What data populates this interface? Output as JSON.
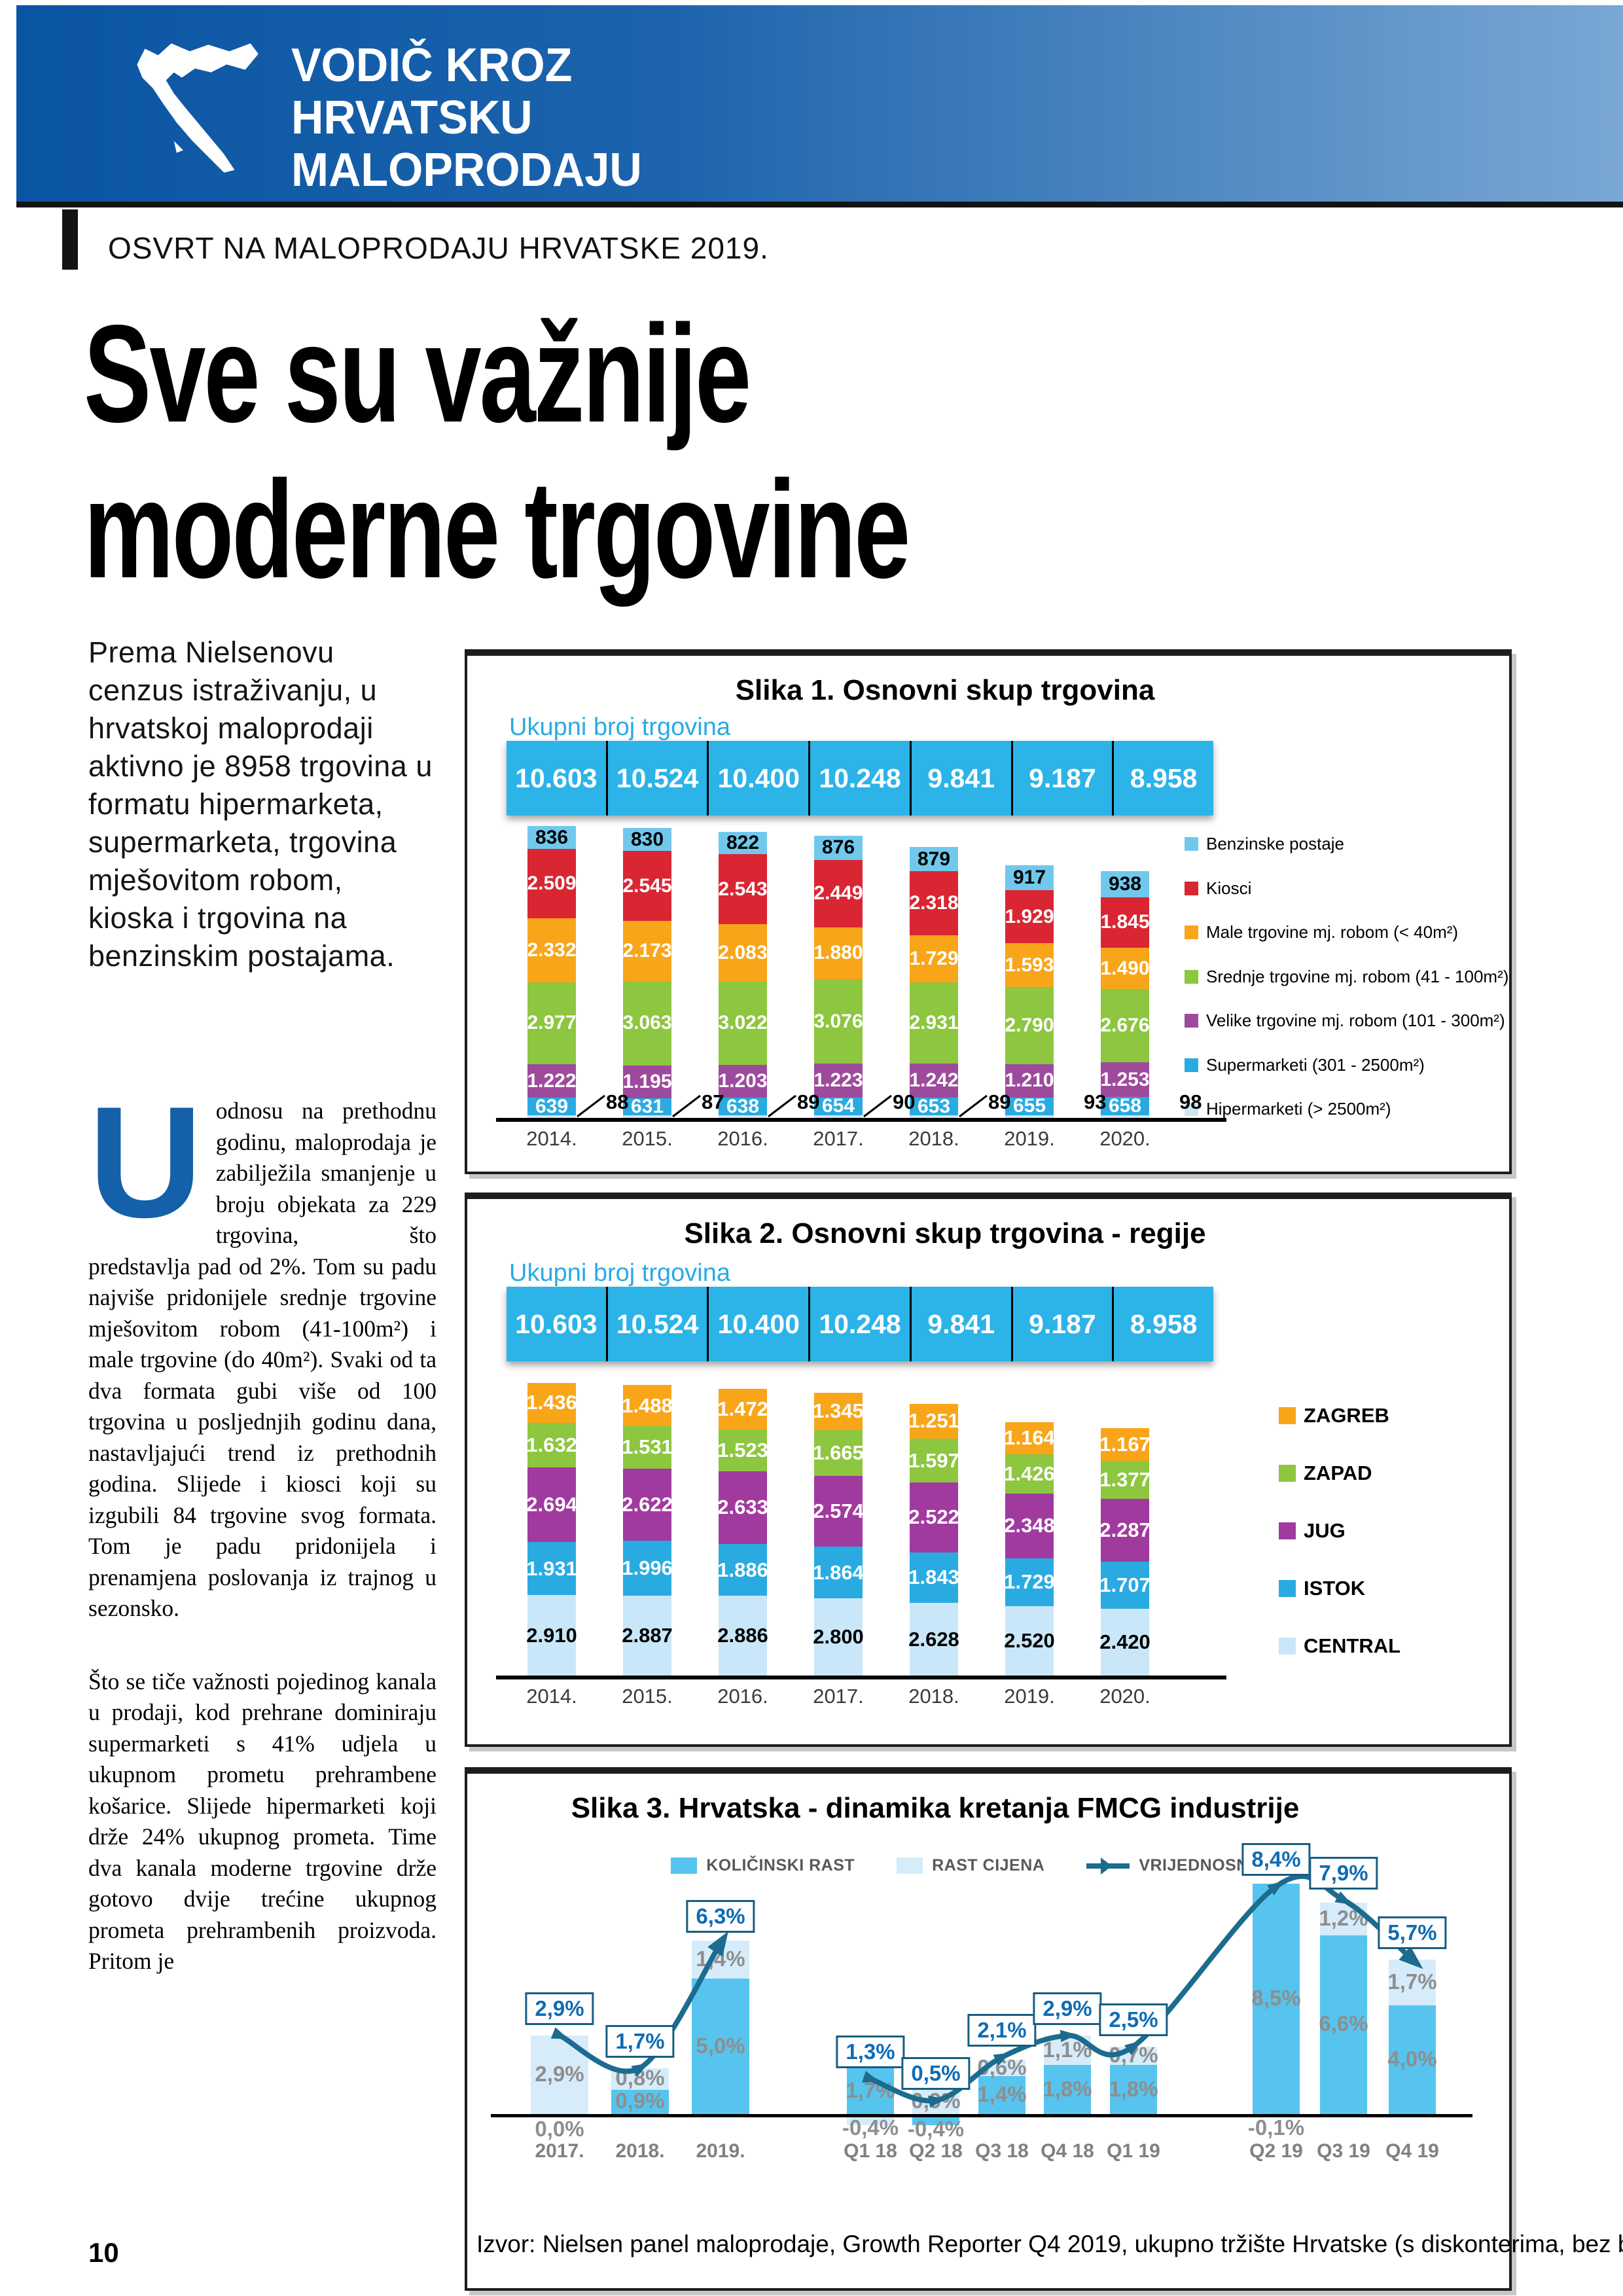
{
  "header": {
    "logo_lines": [
      "VODIČ KROZ",
      "HRVATSKU",
      "MALOPRODAJU"
    ],
    "kicker": "OSVRT NA MALOPRODAJU HRVATSKE 2019."
  },
  "headline": "Sve su važnije\nmoderne trgovine",
  "paragraphs": {
    "intro": "Prema Nielsenovu cenzus istraživanju, u hrvatskoj maloprodaji aktivno je 8958 trgovina u formatu hipermarketa, supermarketa, trgovina mješovitom robom, kioska i trgovina na benzinskim postajama.",
    "dropcap": "U",
    "body1": "odnosu na prethodnu godinu, maloprodaja je zabilježila smanjenje u broju objekata za 229 trgovina, što predstavlja pad od 2%. Tom su padu najviše pridonijele srednje trgovine mješovitom robom (41-100m²) i male trgovine (do 40m²). Svaki od ta dva formata gubi više od 100 trgovina u posljednjih godinu dana, nastavljajući trend iz prethodnih godina. Slijede i kiosci koji su izgubili 84 trgovine svog formata. Tom je padu pridonijela i prenamjena poslovanja iz trajnog u sezonsko.",
    "body2": "Što se tiče važnosti pojedinog kanala u prodaji, kod prehrane dominiraju supermarketi s 41% udjela u ukupnom prometu prehrambene košarice. Slijede hipermarketi koji drže 24% ukupnog prometa. Time dva kanala moderne trgovine drže gotovo dvije trećine ukupnog prometa prehrambenih proizvoda. Pritom je"
  },
  "page_number": "10",
  "chart_data": [
    {
      "type": "bar",
      "stacked": true,
      "title": "Slika 1. Osnovni skup trgovina",
      "subtitle": "Ukupni broj trgovina",
      "totals": [
        "10.603",
        "10.524",
        "10.400",
        "10.248",
        "9.841",
        "9.187",
        "8.958"
      ],
      "categories": [
        "2014.",
        "2015.",
        "2016.",
        "2017.",
        "2018.",
        "2019.",
        "2020."
      ],
      "ymax_total": 10603,
      "series": [
        {
          "name": "Hipermarketi (> 2500m²)",
          "color": "#cfe6f3",
          "callout": true,
          "values": [
            88,
            87,
            89,
            90,
            89,
            93,
            98
          ],
          "labels": [
            "88",
            "87",
            "89",
            "90",
            "89",
            "93",
            "98"
          ]
        },
        {
          "name": "Supermarketi (301 - 2500m²)",
          "color": "#29abe2",
          "label_color": "#ffffff",
          "values": [
            639,
            631,
            638,
            654,
            653,
            655,
            658
          ],
          "labels": [
            "639",
            "631",
            "638",
            "654",
            "653",
            "655",
            "658"
          ]
        },
        {
          "name": "Velike trgovine mj. robom (101 - 300m²)",
          "color": "#9d4a9c",
          "label_color": "#ffffff",
          "values": [
            1222,
            1195,
            1203,
            1223,
            1242,
            1210,
            1253
          ],
          "labels": [
            "1.222",
            "1.195",
            "1.203",
            "1.223",
            "1.242",
            "1.210",
            "1.253"
          ]
        },
        {
          "name": "Srednje trgovine mj. robom (41 - 100m²)",
          "color": "#8dc63f",
          "label_color": "#ffffff",
          "values": [
            2977,
            3063,
            3022,
            3076,
            2931,
            2790,
            2676
          ],
          "labels": [
            "2.977",
            "3.063",
            "3.022",
            "3.076",
            "2.931",
            "2.790",
            "2.676"
          ]
        },
        {
          "name": "Male trgovine mj. robom (< 40m²)",
          "color": "#f9a51a",
          "label_color": "#ffffff",
          "values": [
            2332,
            2173,
            2083,
            1880,
            1729,
            1593,
            1490
          ],
          "labels": [
            "2.332",
            "2.173",
            "2.083",
            "1.880",
            "1.729",
            "1.593",
            "1.490"
          ]
        },
        {
          "name": "Kiosci",
          "color": "#d92632",
          "label_color": "#ffffff",
          "values": [
            2509,
            2545,
            2543,
            2449,
            2318,
            1929,
            1845
          ],
          "labels": [
            "2.509",
            "2.545",
            "2.543",
            "2.449",
            "2.318",
            "1.929",
            "1.845"
          ]
        },
        {
          "name": "Benzinske postaje",
          "color": "#70c9ec",
          "label_color": "#000000",
          "values": [
            836,
            830,
            822,
            876,
            879,
            917,
            938
          ],
          "labels": [
            "836",
            "830",
            "822",
            "876",
            "879",
            "917",
            "938"
          ]
        }
      ],
      "legend": [
        {
          "label": "Benzinske postaje",
          "color": "#70c9ec"
        },
        {
          "label": "Kiosci",
          "color": "#d92632"
        },
        {
          "label": "Male trgovine mj. robom (< 40m²)",
          "color": "#f9a51a"
        },
        {
          "label": "Srednje trgovine mj. robom (41 - 100m²)",
          "color": "#8dc63f"
        },
        {
          "label": "Velike trgovine mj. robom (101 - 300m²)",
          "color": "#9d4a9c"
        },
        {
          "label": "Supermarketi (301 - 2500m²)",
          "color": "#29abe2"
        },
        {
          "label": "Hipermarketi (> 2500m²)",
          "color": "#cfe6f3"
        }
      ]
    },
    {
      "type": "bar",
      "stacked": true,
      "title": "Slika 2. Osnovni skup trgovina - regije",
      "subtitle": "Ukupni broj trgovina",
      "totals": [
        "10.603",
        "10.524",
        "10.400",
        "10.248",
        "9.841",
        "9.187",
        "8.958"
      ],
      "categories": [
        "2014.",
        "2015.",
        "2016.",
        "2017.",
        "2018.",
        "2019.",
        "2020."
      ],
      "ymax_total": 10603,
      "series": [
        {
          "name": "CENTRAL",
          "color": "#c9e7f8",
          "label_color": "#000000",
          "values": [
            2910,
            2887,
            2886,
            2800,
            2628,
            2520,
            2420
          ],
          "labels": [
            "2.910",
            "2.887",
            "2.886",
            "2.800",
            "2.628",
            "2.520",
            "2.420"
          ]
        },
        {
          "name": "ISTOK",
          "color": "#29abe2",
          "label_color": "#ffffff",
          "values": [
            1931,
            1996,
            1886,
            1864,
            1843,
            1729,
            1707
          ],
          "labels": [
            "1.931",
            "1.996",
            "1.886",
            "1.864",
            "1.843",
            "1.729",
            "1.707"
          ]
        },
        {
          "name": "JUG",
          "color": "#a13a9e",
          "label_color": "#ffffff",
          "values": [
            2694,
            2622,
            2633,
            2574,
            2522,
            2348,
            2287
          ],
          "labels": [
            "2.694",
            "2.622",
            "2.633",
            "2.574",
            "2.522",
            "2.348",
            "2.287"
          ]
        },
        {
          "name": "ZAPAD",
          "color": "#8dc63f",
          "label_color": "#ffffff",
          "values": [
            1632,
            1531,
            1523,
            1665,
            1597,
            1426,
            1377
          ],
          "labels": [
            "1.632",
            "1.531",
            "1.523",
            "1.665",
            "1.597",
            "1.426",
            "1.377"
          ]
        },
        {
          "name": "ZAGREB",
          "color": "#f9a51a",
          "label_color": "#ffffff",
          "values": [
            1436,
            1488,
            1472,
            1345,
            1251,
            1164,
            1167
          ],
          "labels": [
            "1.436",
            "1.488",
            "1.472",
            "1.345",
            "1.251",
            "1.164",
            "1.167"
          ]
        }
      ],
      "legend": [
        {
          "label": "ZAGREB",
          "color": "#f9a51a"
        },
        {
          "label": "ZAPAD",
          "color": "#8dc63f"
        },
        {
          "label": "JUG",
          "color": "#a13a9e"
        },
        {
          "label": "ISTOK",
          "color": "#29abe2"
        },
        {
          "label": "CENTRAL",
          "color": "#c9e7f8"
        }
      ]
    },
    {
      "type": "bar+line",
      "title": "Slika 3. Hrvatska - dinamika kretanja FMCG industrije",
      "categories": [
        "2017.",
        "2018.",
        "2019.",
        "Q1 18",
        "Q2 18",
        "Q3 18",
        "Q4 18",
        "Q1 19",
        "Q2 19",
        "Q3 19",
        "Q4 19"
      ],
      "series": [
        {
          "name": "KOLIČINSKI RAST",
          "type": "bar",
          "color": "#56c4ee",
          "values": [
            0.0,
            0.9,
            5.0,
            1.7,
            -0.4,
            1.4,
            1.8,
            1.8,
            8.5,
            6.6,
            4.0
          ],
          "labels": [
            "0,0%",
            "0,9%",
            "5,0%",
            "1,7%",
            "-0,4%",
            "1,4%",
            "1,8%",
            "1,8%",
            "8,5%",
            "6,6%",
            "4,0%"
          ]
        },
        {
          "name": "RAST CIJENA",
          "type": "bar",
          "color": "#d6ecfa",
          "values": [
            2.9,
            0.8,
            1.4,
            -0.4,
            0.9,
            0.6,
            1.1,
            0.7,
            -0.1,
            1.2,
            1.7
          ],
          "labels": [
            "2,9%",
            "0,8%",
            "1,4%",
            "-0,4%",
            "0,9%",
            "0,6%",
            "1,1%",
            "0,7%",
            "-0,1%",
            "1,2%",
            "1,7%"
          ]
        },
        {
          "name": "VRIJEDNOSNI RAST",
          "type": "line",
          "color": "#1d6b8f",
          "values": [
            2.9,
            1.7,
            6.3,
            1.3,
            0.5,
            2.1,
            2.9,
            2.5,
            8.4,
            7.9,
            5.7
          ],
          "labels": [
            "2,9%",
            "1,7%",
            "6,3%",
            "1,3%",
            "0,5%",
            "2,1%",
            "2,9%",
            "2,5%",
            "8,4%",
            "7,9%",
            "5,7%"
          ]
        }
      ],
      "source": "Izvor: Nielsen panel maloprodaje, Growth Reporter Q4 2019, ukupno tržište Hrvatske (s diskonterima, bez benzinskih postaja)"
    }
  ]
}
